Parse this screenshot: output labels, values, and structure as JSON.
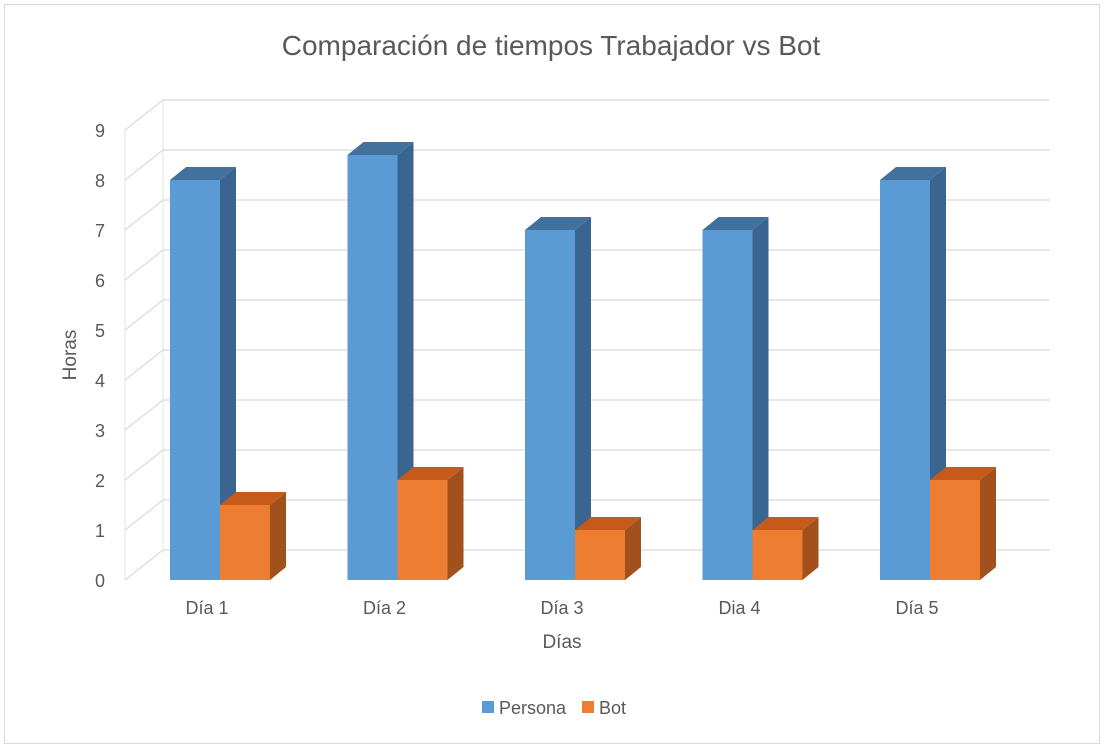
{
  "chart_data": {
    "type": "bar",
    "title": "Comparación de tiempos Trabajador vs Bot",
    "xlabel": "Días",
    "ylabel": "Horas",
    "categories": [
      "Día 1",
      "Día 2",
      "Día 3",
      "Dia 4",
      "Día 5"
    ],
    "ylim": [
      0,
      9
    ],
    "yticks": [
      "0",
      "1",
      "2",
      "3",
      "4",
      "5",
      "6",
      "7",
      "8",
      "9"
    ],
    "grid": true,
    "legend_position": "bottom",
    "style": "3d-clustered-column",
    "series": [
      {
        "name": "Persona",
        "color": "#5b9bd5",
        "side_color": "#3a6590",
        "top_color": "#41719c",
        "values": [
          8,
          8.5,
          7,
          7,
          8
        ]
      },
      {
        "name": "Bot",
        "color": "#ed7d31",
        "side_color": "#a2511c",
        "top_color": "#c55a1a",
        "values": [
          1.5,
          2,
          1,
          1,
          2
        ]
      }
    ]
  }
}
